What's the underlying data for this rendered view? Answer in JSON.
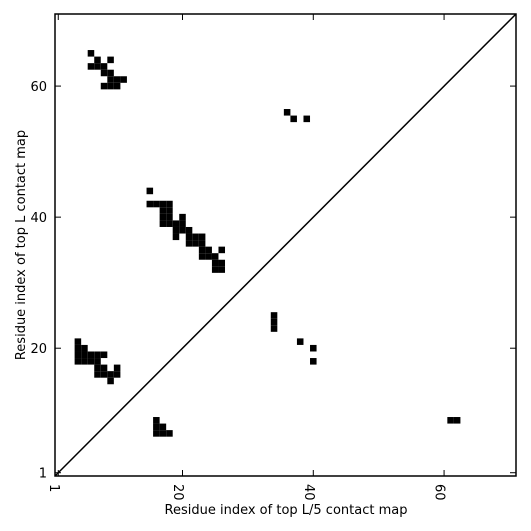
{
  "chart_data": {
    "type": "scatter",
    "marker": "square",
    "color": "#000000",
    "xlabel": "Residue index of top L/5 contact map",
    "ylabel": "Residue index of top L contact map",
    "xlim": [
      0.5,
      71
    ],
    "ylim": [
      0.5,
      71
    ],
    "xticks": [
      1,
      20,
      40,
      60
    ],
    "yticks": [
      1,
      20,
      40,
      60
    ],
    "diagonal": true,
    "x": [
      6,
      7,
      9,
      6,
      7,
      8,
      8,
      9,
      9,
      10,
      11,
      8,
      9,
      10,
      36,
      37,
      39,
      15,
      15,
      16,
      17,
      18,
      17,
      18,
      17,
      18,
      20,
      17,
      18,
      19,
      20,
      19,
      20,
      21,
      19,
      21,
      22,
      23,
      21,
      22,
      23,
      23,
      24,
      26,
      23,
      24,
      25,
      25,
      26,
      25,
      26,
      34,
      34,
      34,
      38,
      40,
      40,
      4,
      4,
      5,
      4,
      5,
      6,
      7,
      8,
      4,
      5,
      6,
      7,
      7,
      8,
      10,
      7,
      8,
      9,
      10,
      9,
      16,
      16,
      17,
      16,
      17,
      18,
      61,
      62
    ],
    "y": [
      65,
      64,
      64,
      63,
      63,
      63,
      62,
      62,
      61,
      61,
      61,
      60,
      60,
      60,
      56,
      55,
      55,
      44,
      42,
      42,
      42,
      42,
      41,
      41,
      40,
      40,
      40,
      39,
      39,
      39,
      39,
      38,
      38,
      38,
      37,
      37,
      37,
      37,
      36,
      36,
      36,
      35,
      35,
      35,
      34,
      34,
      34,
      33,
      33,
      32,
      32,
      23,
      24,
      25,
      21,
      20,
      18,
      21,
      20,
      20,
      19,
      19,
      19,
      19,
      19,
      18,
      18,
      18,
      18,
      17,
      17,
      17,
      16,
      16,
      16,
      16,
      15,
      9,
      8,
      8,
      7,
      7,
      7,
      9,
      9
    ]
  }
}
